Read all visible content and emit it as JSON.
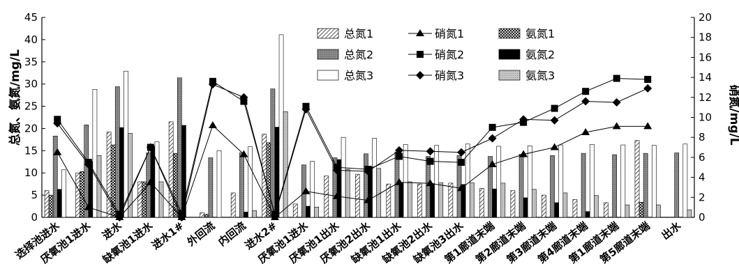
{
  "chart_data": {
    "type": "bar",
    "title": "",
    "ylabel_left": "总氮、氨氮/mg/L",
    "ylabel_right": "硝氮/mg/L",
    "ylim_left": [
      0,
      45
    ],
    "ylim_right": [
      0,
      20
    ],
    "left_ticks": [
      "0",
      "5",
      "10",
      "15",
      "20",
      "25",
      "30",
      "35",
      "40",
      "45"
    ],
    "right_ticks": [
      "0",
      "2",
      "4",
      "6",
      "8",
      "10",
      "12",
      "14",
      "16",
      "18",
      "20"
    ],
    "categories": [
      "选择池进水",
      "厌氧池1进水",
      "进水",
      "缺氧池1进水",
      "进水1#",
      "外回流",
      "内回流",
      "进水2#",
      "厌氧池1进水",
      "厌氧池1出水",
      "厌氧池2出水",
      "缺氧池1出水",
      "缺氧池2出水",
      "缺氧池3出水",
      "第1廊道末端",
      "第2廊道末端",
      "第3廊道末端",
      "第4廊道末端",
      "第1廊道末端",
      "第5廊道末端",
      "出水"
    ],
    "bar_series": [
      {
        "name": "总氮1",
        "values": [
          6,
          10,
          19.2,
          8,
          21.5,
          1,
          5.5,
          18.7,
          3,
          9.3,
          9.7,
          7.5,
          7.5,
          7.7,
          6.5,
          6,
          5,
          4,
          3.3,
          17.3,
          null
        ]
      },
      {
        "name": "总氮2",
        "values": [
          18.3,
          20.8,
          29.4,
          14.5,
          31.4,
          13.4,
          14.5,
          28.9,
          11.8,
          13.4,
          14.3,
          14.7,
          13.7,
          13.9,
          13.7,
          14.2,
          13.9,
          14.4,
          14.1,
          14.4,
          14.5
        ]
      },
      {
        "name": "总氮3",
        "values": [
          10.7,
          28.8,
          32.9,
          17,
          null,
          15,
          15.9,
          41.1,
          12.6,
          18,
          17.8,
          16.4,
          16.2,
          16.5,
          16,
          16.1,
          16.3,
          16.4,
          16.3,
          16.2,
          16.5
        ]
      },
      {
        "name": "氨氮1",
        "values": [
          5,
          10.3,
          16.3,
          8,
          14.4,
          0.7,
          null,
          16.8,
          null,
          null,
          null,
          null,
          null,
          null,
          null,
          null,
          null,
          null,
          null,
          3.4,
          null
        ]
      },
      {
        "name": "氨氮2",
        "values": [
          6.3,
          12.6,
          20.2,
          16,
          20.7,
          null,
          1.2,
          20.3,
          2.5,
          13,
          11.4,
          7.7,
          7.6,
          7.4,
          6.4,
          4.4,
          3.3,
          1.3,
          null,
          null,
          null
        ]
      },
      {
        "name": "氨氮3",
        "values": [
          null,
          13.9,
          18.9,
          8,
          null,
          null,
          1.5,
          23.8,
          2.3,
          10.8,
          11,
          8,
          7.8,
          7.8,
          7.7,
          6.3,
          5.5,
          4.9,
          2.8,
          2.8,
          1.7
        ]
      }
    ],
    "line_series": [
      {
        "name": "硝氮1",
        "marker": "triangle",
        "values": [
          6.5,
          1,
          0,
          3.5,
          0,
          9.2,
          6.3,
          0,
          2.6,
          2.1,
          1.7,
          3.5,
          3.4,
          2.9,
          5.3,
          6.3,
          7,
          8.5,
          9.1,
          9.1,
          null
        ]
      },
      {
        "name": "硝氮2",
        "marker": "square",
        "values": [
          9.8,
          5.5,
          0.3,
          7,
          0.4,
          13.6,
          11.6,
          0.3,
          11.1,
          5,
          4.8,
          6.1,
          5.6,
          5.5,
          9,
          9.5,
          10.9,
          12.6,
          13.9,
          13.8,
          null
        ]
      },
      {
        "name": "硝氮3",
        "marker": "diamond",
        "values": [
          9.4,
          5.3,
          0,
          7,
          0,
          13.3,
          12,
          0.2,
          10.8,
          4.7,
          4.6,
          6.7,
          6.6,
          6.5,
          7.9,
          9.8,
          9.7,
          11.6,
          11.5,
          12.9,
          null
        ]
      }
    ],
    "legend_labels": [
      "总氮1",
      "硝氮1",
      "氨氮1",
      "总氮2",
      "硝氮2",
      "氨氮2",
      "总氮3",
      "硝氮3",
      "氨氮3"
    ],
    "legend_position": "top-center",
    "grid": false
  }
}
